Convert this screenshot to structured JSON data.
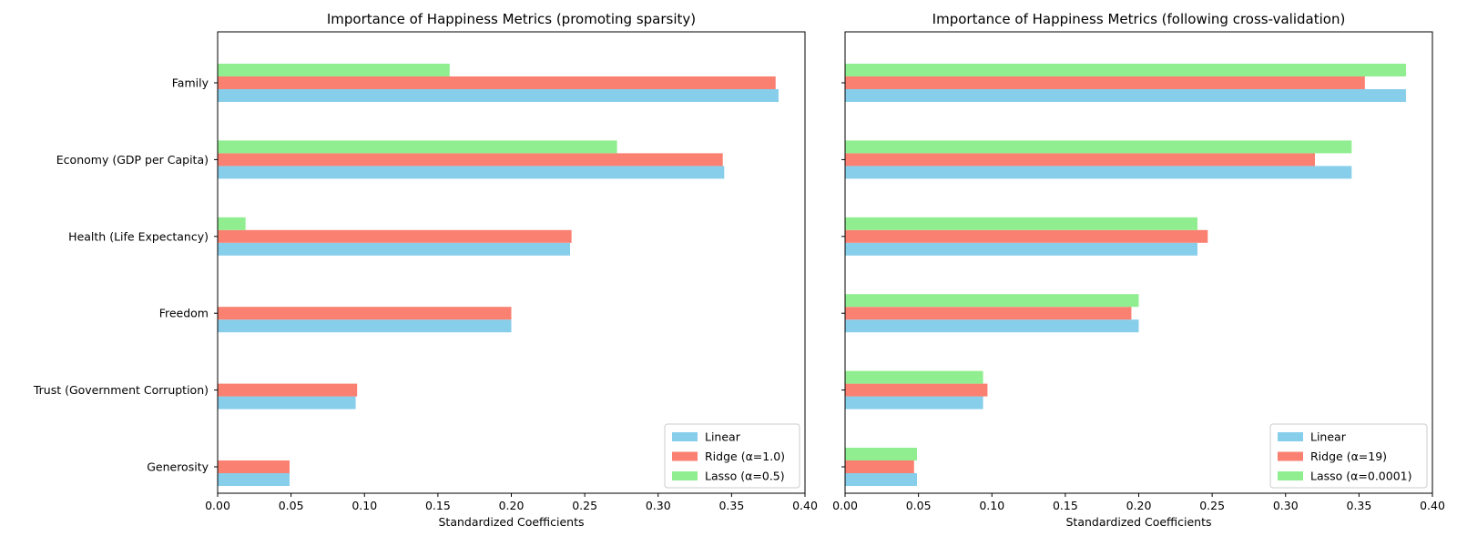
{
  "chart_data": [
    {
      "type": "bar",
      "orientation": "horizontal",
      "title": "Importance of Happiness Metrics (promoting sparsity)",
      "xlabel": "Standardized Coefficients",
      "ylabel": "",
      "xlim": [
        0,
        0.4
      ],
      "xticks": [
        "0.00",
        "0.05",
        "0.10",
        "0.15",
        "0.20",
        "0.25",
        "0.30",
        "0.35",
        "0.40"
      ],
      "categories": [
        "Family",
        "Economy (GDP per Capita)",
        "Health (Life Expectancy)",
        "Freedom",
        "Trust (Government Corruption)",
        "Generosity"
      ],
      "series": [
        {
          "name": "Linear",
          "color": "#87CEEB",
          "values": [
            0.382,
            0.345,
            0.24,
            0.2,
            0.094,
            0.049
          ]
        },
        {
          "name": "Ridge (α=1.0)",
          "color": "#FA8072",
          "values": [
            0.38,
            0.344,
            0.241,
            0.2,
            0.095,
            0.049
          ]
        },
        {
          "name": "Lasso (α=0.5)",
          "color": "#90EE90",
          "values": [
            0.158,
            0.272,
            0.019,
            0.0,
            0.0,
            0.0
          ]
        }
      ],
      "legend_position": "lower-right",
      "grid": false
    },
    {
      "type": "bar",
      "orientation": "horizontal",
      "title": "Importance of Happiness Metrics (following cross-validation)",
      "xlabel": "Standardized Coefficients",
      "ylabel": "",
      "xlim": [
        0,
        0.4
      ],
      "xticks": [
        "0.00",
        "0.05",
        "0.10",
        "0.15",
        "0.20",
        "0.25",
        "0.30",
        "0.35",
        "0.40"
      ],
      "categories": [
        "Family",
        "Economy (GDP per Capita)",
        "Health (Life Expectancy)",
        "Freedom",
        "Trust (Government Corruption)",
        "Generosity"
      ],
      "series": [
        {
          "name": "Linear",
          "color": "#87CEEB",
          "values": [
            0.382,
            0.345,
            0.24,
            0.2,
            0.094,
            0.049
          ]
        },
        {
          "name": "Ridge (α=19)",
          "color": "#FA8072",
          "values": [
            0.354,
            0.32,
            0.247,
            0.195,
            0.097,
            0.047
          ]
        },
        {
          "name": "Lasso (α=0.0001)",
          "color": "#90EE90",
          "values": [
            0.382,
            0.345,
            0.24,
            0.2,
            0.094,
            0.049
          ]
        }
      ],
      "legend_position": "lower-right",
      "grid": false
    }
  ]
}
